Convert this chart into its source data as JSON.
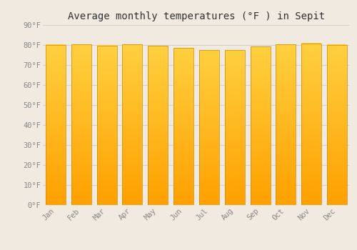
{
  "title": "Average monthly temperatures (°F ) in Sepit",
  "months": [
    "Jan",
    "Feb",
    "Mar",
    "Apr",
    "May",
    "Jun",
    "Jul",
    "Aug",
    "Sep",
    "Oct",
    "Nov",
    "Dec"
  ],
  "values": [
    80.1,
    80.2,
    79.8,
    80.4,
    79.7,
    78.6,
    77.5,
    77.5,
    79.3,
    80.4,
    80.8,
    80.1
  ],
  "ylim": [
    0,
    90
  ],
  "yticks": [
    0,
    10,
    20,
    30,
    40,
    50,
    60,
    70,
    80,
    90
  ],
  "bar_color_top": "#FFD040",
  "bar_color_bottom": "#FFA000",
  "bar_edge_color": "#CC8800",
  "bg_color": "#F0EAE0",
  "grid_color": "#CCCCCC",
  "title_fontsize": 10,
  "tick_fontsize": 7.5,
  "title_color": "#333333",
  "tick_color": "#888888"
}
